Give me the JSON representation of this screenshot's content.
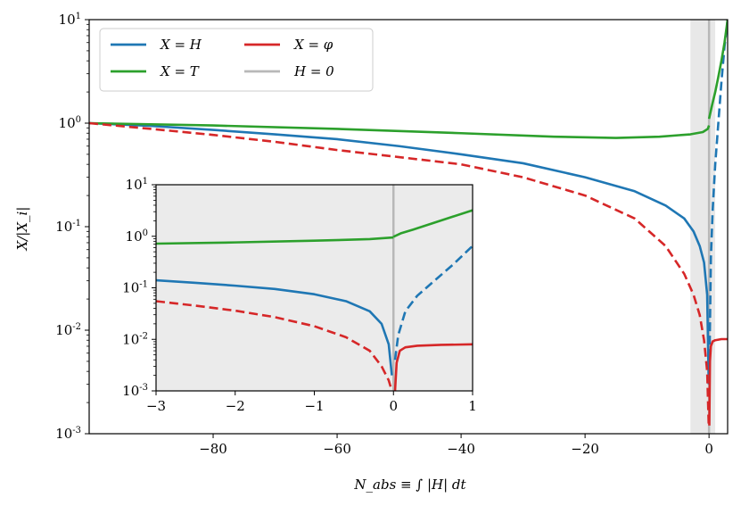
{
  "chart_data": [
    {
      "type": "line",
      "xlabel": "N_abs ≡ ∫ |H| dt",
      "ylabel": "X/|X_i|",
      "xlim": [
        -100,
        3
      ],
      "ylim": [
        0.001,
        10
      ],
      "yscale": "log",
      "x_ticks": [
        -80,
        -60,
        -40,
        -20,
        0
      ],
      "x_tick_labels": [
        "−80",
        "−60",
        "−40",
        "−20",
        "0"
      ],
      "y_ticks": [
        10,
        1,
        0.1,
        0.01,
        0.001
      ],
      "y_tick_labels": [
        "10^1",
        "10^0",
        "10^-1",
        "10^-2",
        "10^-3"
      ],
      "shaded_region": [
        -3,
        1
      ],
      "vline": 0,
      "legend": {
        "placement": "upper-left",
        "columns": 2
      },
      "series": [
        {
          "name": "X = H",
          "color": "#1f77b4",
          "segments": [
            {
              "style": "solid",
              "x": [
                -100,
                -90,
                -80,
                -70,
                -60,
                -50,
                -40,
                -30,
                -20,
                -12,
                -7,
                -4,
                -2.5,
                -1.5,
                -0.8,
                -0.3,
                -0.05
              ],
              "y": [
                1.0,
                0.94,
                0.86,
                0.78,
                0.7,
                0.6,
                0.5,
                0.41,
                0.3,
                0.22,
                0.16,
                0.12,
                0.09,
                0.065,
                0.045,
                0.022,
                0.003
              ]
            },
            {
              "style": "dashed",
              "x": [
                0.05,
                0.3,
                0.6,
                1.0,
                1.5,
                2.0,
                2.5,
                3.0
              ],
              "y": [
                0.004,
                0.05,
                0.15,
                0.4,
                1.0,
                2.5,
                5.5,
                10
              ]
            }
          ]
        },
        {
          "name": "X = T",
          "color": "#2ca02c",
          "segments": [
            {
              "style": "solid",
              "x": [
                -100,
                -80,
                -60,
                -40,
                -25,
                -15,
                -8,
                -3,
                -1,
                -0.2,
                0
              ],
              "y": [
                1.0,
                0.95,
                0.88,
                0.8,
                0.74,
                0.72,
                0.74,
                0.78,
                0.82,
                0.88,
                0.95
              ]
            },
            {
              "style": "solid",
              "x": [
                0,
                0.5,
                1.0,
                1.5,
                2.0,
                2.5,
                3.0
              ],
              "y": [
                1.1,
                1.5,
                2.0,
                2.8,
                4.0,
                6.0,
                10
              ]
            }
          ]
        },
        {
          "name": "X = φ",
          "color": "#d62728",
          "segments": [
            {
              "style": "dashed",
              "x": [
                -100,
                -90,
                -80,
                -70,
                -60,
                -50,
                -40,
                -30,
                -20,
                -12,
                -7,
                -4,
                -2.5,
                -1.5,
                -0.8,
                -0.3,
                -0.05
              ],
              "y": [
                1.0,
                0.88,
                0.77,
                0.66,
                0.55,
                0.47,
                0.4,
                0.3,
                0.2,
                0.12,
                0.065,
                0.035,
                0.022,
                0.014,
                0.008,
                0.004,
                0.0012
              ]
            },
            {
              "style": "solid",
              "x": [
                0.05,
                0.15,
                0.3,
                0.6,
                1.0,
                2.0,
                3.0
              ],
              "y": [
                0.0012,
                0.005,
                0.007,
                0.0078,
                0.008,
                0.0082,
                0.0082
              ]
            }
          ]
        },
        {
          "name": "H = 0",
          "color": "#b8b8b8",
          "segments": []
        }
      ]
    },
    {
      "type": "line",
      "role": "inset",
      "xlim": [
        -3,
        1
      ],
      "ylim": [
        0.001,
        10
      ],
      "yscale": "log",
      "x_ticks": [
        -3,
        -2,
        -1,
        0,
        1
      ],
      "x_tick_labels": [
        "−3",
        "−2",
        "−1",
        "0",
        "1"
      ],
      "y_ticks": [
        10,
        1,
        0.1,
        0.01,
        0.001
      ],
      "y_tick_labels": [
        "10^1",
        "10^0",
        "10^-1",
        "10^-2",
        "10^-3"
      ],
      "background": "#ebebeb",
      "vline": 0,
      "series": [
        {
          "name": "X = H",
          "color": "#1f77b4",
          "segments": [
            {
              "style": "solid",
              "x": [
                -3,
                -2.5,
                -2.0,
                -1.5,
                -1.0,
                -0.6,
                -0.3,
                -0.15,
                -0.06,
                -0.02
              ],
              "y": [
                0.14,
                0.125,
                0.11,
                0.095,
                0.075,
                0.055,
                0.035,
                0.02,
                0.008,
                0.002
              ]
            },
            {
              "style": "dashed",
              "x": [
                0.02,
                0.06,
                0.15,
                0.3,
                0.5,
                0.75,
                1.0
              ],
              "y": [
                0.004,
                0.012,
                0.035,
                0.07,
                0.13,
                0.28,
                0.65
              ]
            }
          ]
        },
        {
          "name": "X = T",
          "color": "#2ca02c",
          "segments": [
            {
              "style": "solid",
              "x": [
                -3,
                -2,
                -1,
                -0.3,
                0
              ],
              "y": [
                0.72,
                0.76,
                0.82,
                0.88,
                0.95
              ]
            },
            {
              "style": "solid",
              "x": [
                0,
                0.1,
                0.25,
                0.5,
                0.75,
                1.0
              ],
              "y": [
                0.98,
                1.15,
                1.35,
                1.8,
                2.4,
                3.2
              ]
            }
          ]
        },
        {
          "name": "X = φ",
          "color": "#d62728",
          "segments": [
            {
              "style": "dashed",
              "x": [
                -3,
                -2.5,
                -2.0,
                -1.5,
                -1.0,
                -0.6,
                -0.3,
                -0.15,
                -0.06,
                -0.02
              ],
              "y": [
                0.055,
                0.045,
                0.036,
                0.027,
                0.018,
                0.011,
                0.006,
                0.003,
                0.0016,
                0.001
              ]
            },
            {
              "style": "solid",
              "x": [
                0.02,
                0.04,
                0.08,
                0.15,
                0.3,
                0.6,
                1.0
              ],
              "y": [
                0.001,
                0.0035,
                0.006,
                0.007,
                0.0075,
                0.0078,
                0.008
              ]
            }
          ]
        }
      ]
    }
  ]
}
